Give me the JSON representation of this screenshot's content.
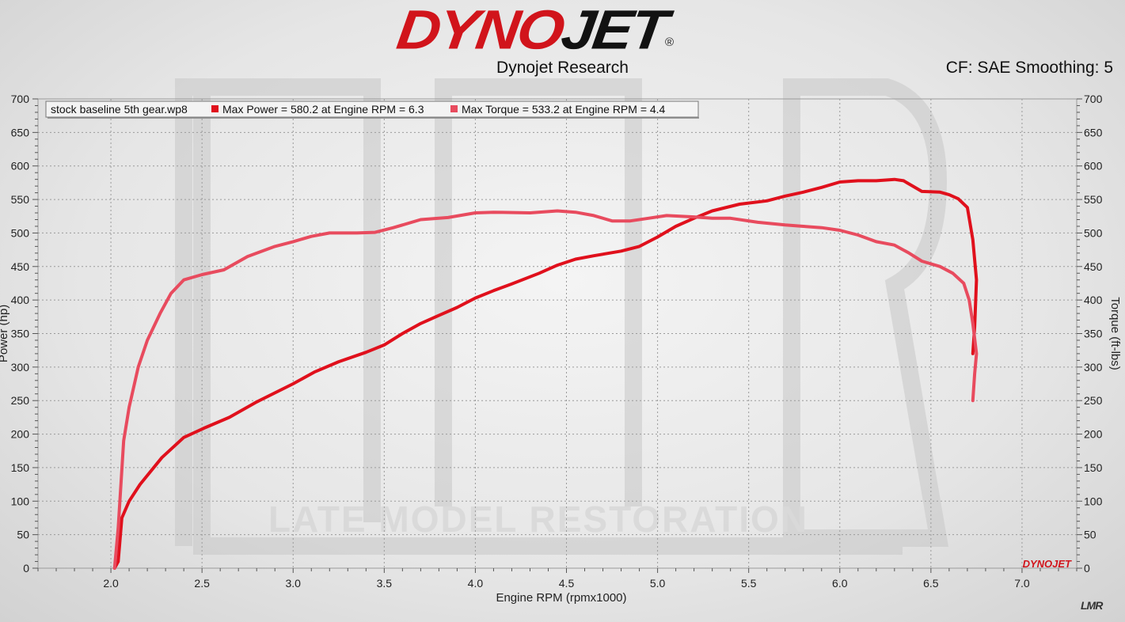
{
  "header": {
    "logo_dyno": "DYNO",
    "logo_jet": "JET",
    "logo_reg": "®",
    "subtitle": "Dynojet Research",
    "cf_info": "CF: SAE Smoothing: 5"
  },
  "watermark": {
    "text": "LATE MODEL RESTORATION",
    "letters": "LMR"
  },
  "corner_logo": "LMR",
  "chart_data": {
    "type": "line",
    "xlabel": "Engine RPM (rpmx1000)",
    "ylabel": "Power (hp)",
    "y2label": "Torque (ft-lbs)",
    "xlim": [
      1.6,
      7.3
    ],
    "ylim": [
      0,
      700
    ],
    "y2lim": [
      0,
      700
    ],
    "x_ticks": [
      "2.0",
      "2.5",
      "3.0",
      "3.5",
      "4.0",
      "4.5",
      "5.0",
      "5.5",
      "6.0",
      "6.5",
      "7.0"
    ],
    "y_ticks": [
      "0",
      "50",
      "100",
      "150",
      "200",
      "250",
      "300",
      "350",
      "400",
      "450",
      "500",
      "550",
      "600",
      "650",
      "700"
    ],
    "grid": true,
    "legend": {
      "placement": "top-left",
      "file": "stock baseline 5th gear.wp8",
      "entries": [
        "Max Power = 580.2 at Engine RPM = 6.3",
        "Max Torque = 533.2 at Engine RPM = 4.4"
      ]
    },
    "badge": "DYNOJET",
    "colors": {
      "power": "#e0101c",
      "torque": "#e84b5e",
      "axis": "#555555",
      "grid": "#9a9a9a"
    },
    "series": [
      {
        "axis": "left",
        "points": [
          [
            2.02,
            0
          ],
          [
            2.04,
            10
          ],
          [
            2.06,
            75
          ],
          [
            2.1,
            100
          ],
          [
            2.16,
            125
          ],
          [
            2.28,
            165
          ],
          [
            2.4,
            195
          ],
          [
            2.52,
            210
          ],
          [
            2.65,
            225
          ],
          [
            2.8,
            248
          ],
          [
            3.0,
            275
          ],
          [
            3.12,
            293
          ],
          [
            3.25,
            308
          ],
          [
            3.4,
            322
          ],
          [
            3.5,
            333
          ],
          [
            3.6,
            350
          ],
          [
            3.7,
            365
          ],
          [
            3.8,
            377
          ],
          [
            3.9,
            389
          ],
          [
            4.0,
            403
          ],
          [
            4.1,
            414
          ],
          [
            4.2,
            424
          ],
          [
            4.35,
            440
          ],
          [
            4.45,
            452
          ],
          [
            4.55,
            461
          ],
          [
            4.65,
            466
          ],
          [
            4.8,
            473
          ],
          [
            4.9,
            480
          ],
          [
            5.0,
            494
          ],
          [
            5.1,
            510
          ],
          [
            5.2,
            522
          ],
          [
            5.3,
            533
          ],
          [
            5.45,
            543
          ],
          [
            5.6,
            548
          ],
          [
            5.7,
            555
          ],
          [
            5.8,
            561
          ],
          [
            5.9,
            568
          ],
          [
            6.0,
            576
          ],
          [
            6.1,
            578
          ],
          [
            6.2,
            578
          ],
          [
            6.3,
            580
          ],
          [
            6.35,
            578
          ],
          [
            6.4,
            570
          ],
          [
            6.45,
            562
          ],
          [
            6.55,
            561
          ],
          [
            6.6,
            557
          ],
          [
            6.65,
            551
          ],
          [
            6.7,
            538
          ],
          [
            6.73,
            490
          ],
          [
            6.75,
            430
          ],
          [
            6.74,
            360
          ],
          [
            6.73,
            320
          ]
        ]
      },
      {
        "axis": "right",
        "points": [
          [
            2.02,
            0
          ],
          [
            2.04,
            60
          ],
          [
            2.07,
            190
          ],
          [
            2.1,
            240
          ],
          [
            2.15,
            300
          ],
          [
            2.2,
            340
          ],
          [
            2.27,
            380
          ],
          [
            2.33,
            410
          ],
          [
            2.4,
            430
          ],
          [
            2.5,
            438
          ],
          [
            2.62,
            445
          ],
          [
            2.75,
            465
          ],
          [
            2.9,
            480
          ],
          [
            3.0,
            487
          ],
          [
            3.1,
            495
          ],
          [
            3.2,
            500
          ],
          [
            3.35,
            500
          ],
          [
            3.45,
            501
          ],
          [
            3.55,
            508
          ],
          [
            3.7,
            520
          ],
          [
            3.85,
            523
          ],
          [
            4.0,
            530
          ],
          [
            4.1,
            531
          ],
          [
            4.3,
            530
          ],
          [
            4.45,
            533
          ],
          [
            4.55,
            531
          ],
          [
            4.65,
            526
          ],
          [
            4.75,
            518
          ],
          [
            4.85,
            518
          ],
          [
            4.95,
            522
          ],
          [
            5.05,
            526
          ],
          [
            5.2,
            524
          ],
          [
            5.3,
            522
          ],
          [
            5.4,
            522
          ],
          [
            5.55,
            516
          ],
          [
            5.7,
            512
          ],
          [
            5.8,
            510
          ],
          [
            5.9,
            508
          ],
          [
            6.0,
            504
          ],
          [
            6.1,
            497
          ],
          [
            6.2,
            487
          ],
          [
            6.3,
            482
          ],
          [
            6.38,
            470
          ],
          [
            6.45,
            458
          ],
          [
            6.55,
            450
          ],
          [
            6.62,
            440
          ],
          [
            6.68,
            425
          ],
          [
            6.71,
            400
          ],
          [
            6.73,
            365
          ],
          [
            6.75,
            320
          ],
          [
            6.74,
            290
          ],
          [
            6.73,
            250
          ]
        ]
      }
    ]
  }
}
